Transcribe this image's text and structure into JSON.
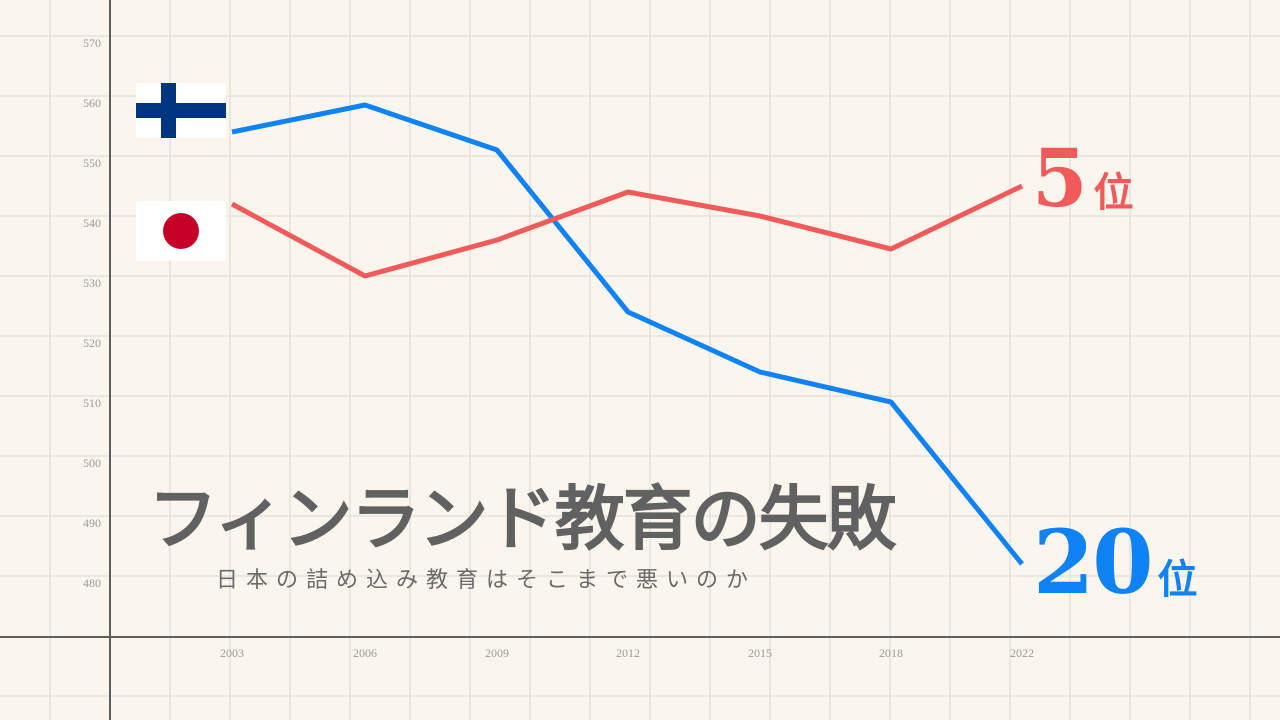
{
  "chart_data": {
    "type": "line",
    "title": "フィンランド教育の失敗",
    "subtitle": "日本の詰め込み教育はそこまで悪いのか",
    "xlabel": "",
    "ylabel": "",
    "categories": [
      "2003",
      "2006",
      "2009",
      "2012",
      "2015",
      "2018",
      "2022"
    ],
    "yticks": [
      "570",
      "560",
      "550",
      "540",
      "530",
      "520",
      "510",
      "500",
      "490",
      "480"
    ],
    "ylim": [
      470,
      575
    ],
    "grid": true,
    "series": [
      {
        "name": "Finland",
        "color": "#1083f4",
        "values": [
          554,
          558.5,
          551,
          524,
          514,
          509,
          482
        ]
      },
      {
        "name": "Japan",
        "color": "#f05a5a",
        "values": [
          542,
          530,
          536,
          544,
          540,
          534.5,
          545
        ]
      }
    ],
    "annotations": [
      {
        "series": "Japan",
        "num": "5",
        "unit": "位"
      },
      {
        "series": "Finland",
        "num": "20",
        "unit": "位"
      }
    ],
    "legend": "flags at left of line starts"
  },
  "flags": {
    "finland": {
      "label": "finland-flag",
      "blue": "#003580",
      "white": "#ffffff"
    },
    "japan": {
      "label": "japan-flag",
      "red": "#c60026",
      "white": "#ffffff"
    }
  },
  "rank_labels": {
    "japan": {
      "num": "5",
      "unit": "位"
    },
    "finland": {
      "num": "20",
      "unit": "位"
    }
  },
  "title": "フィンランド教育の失敗",
  "subtitle": "日本の詰め込み教育はそこまで悪いのか"
}
